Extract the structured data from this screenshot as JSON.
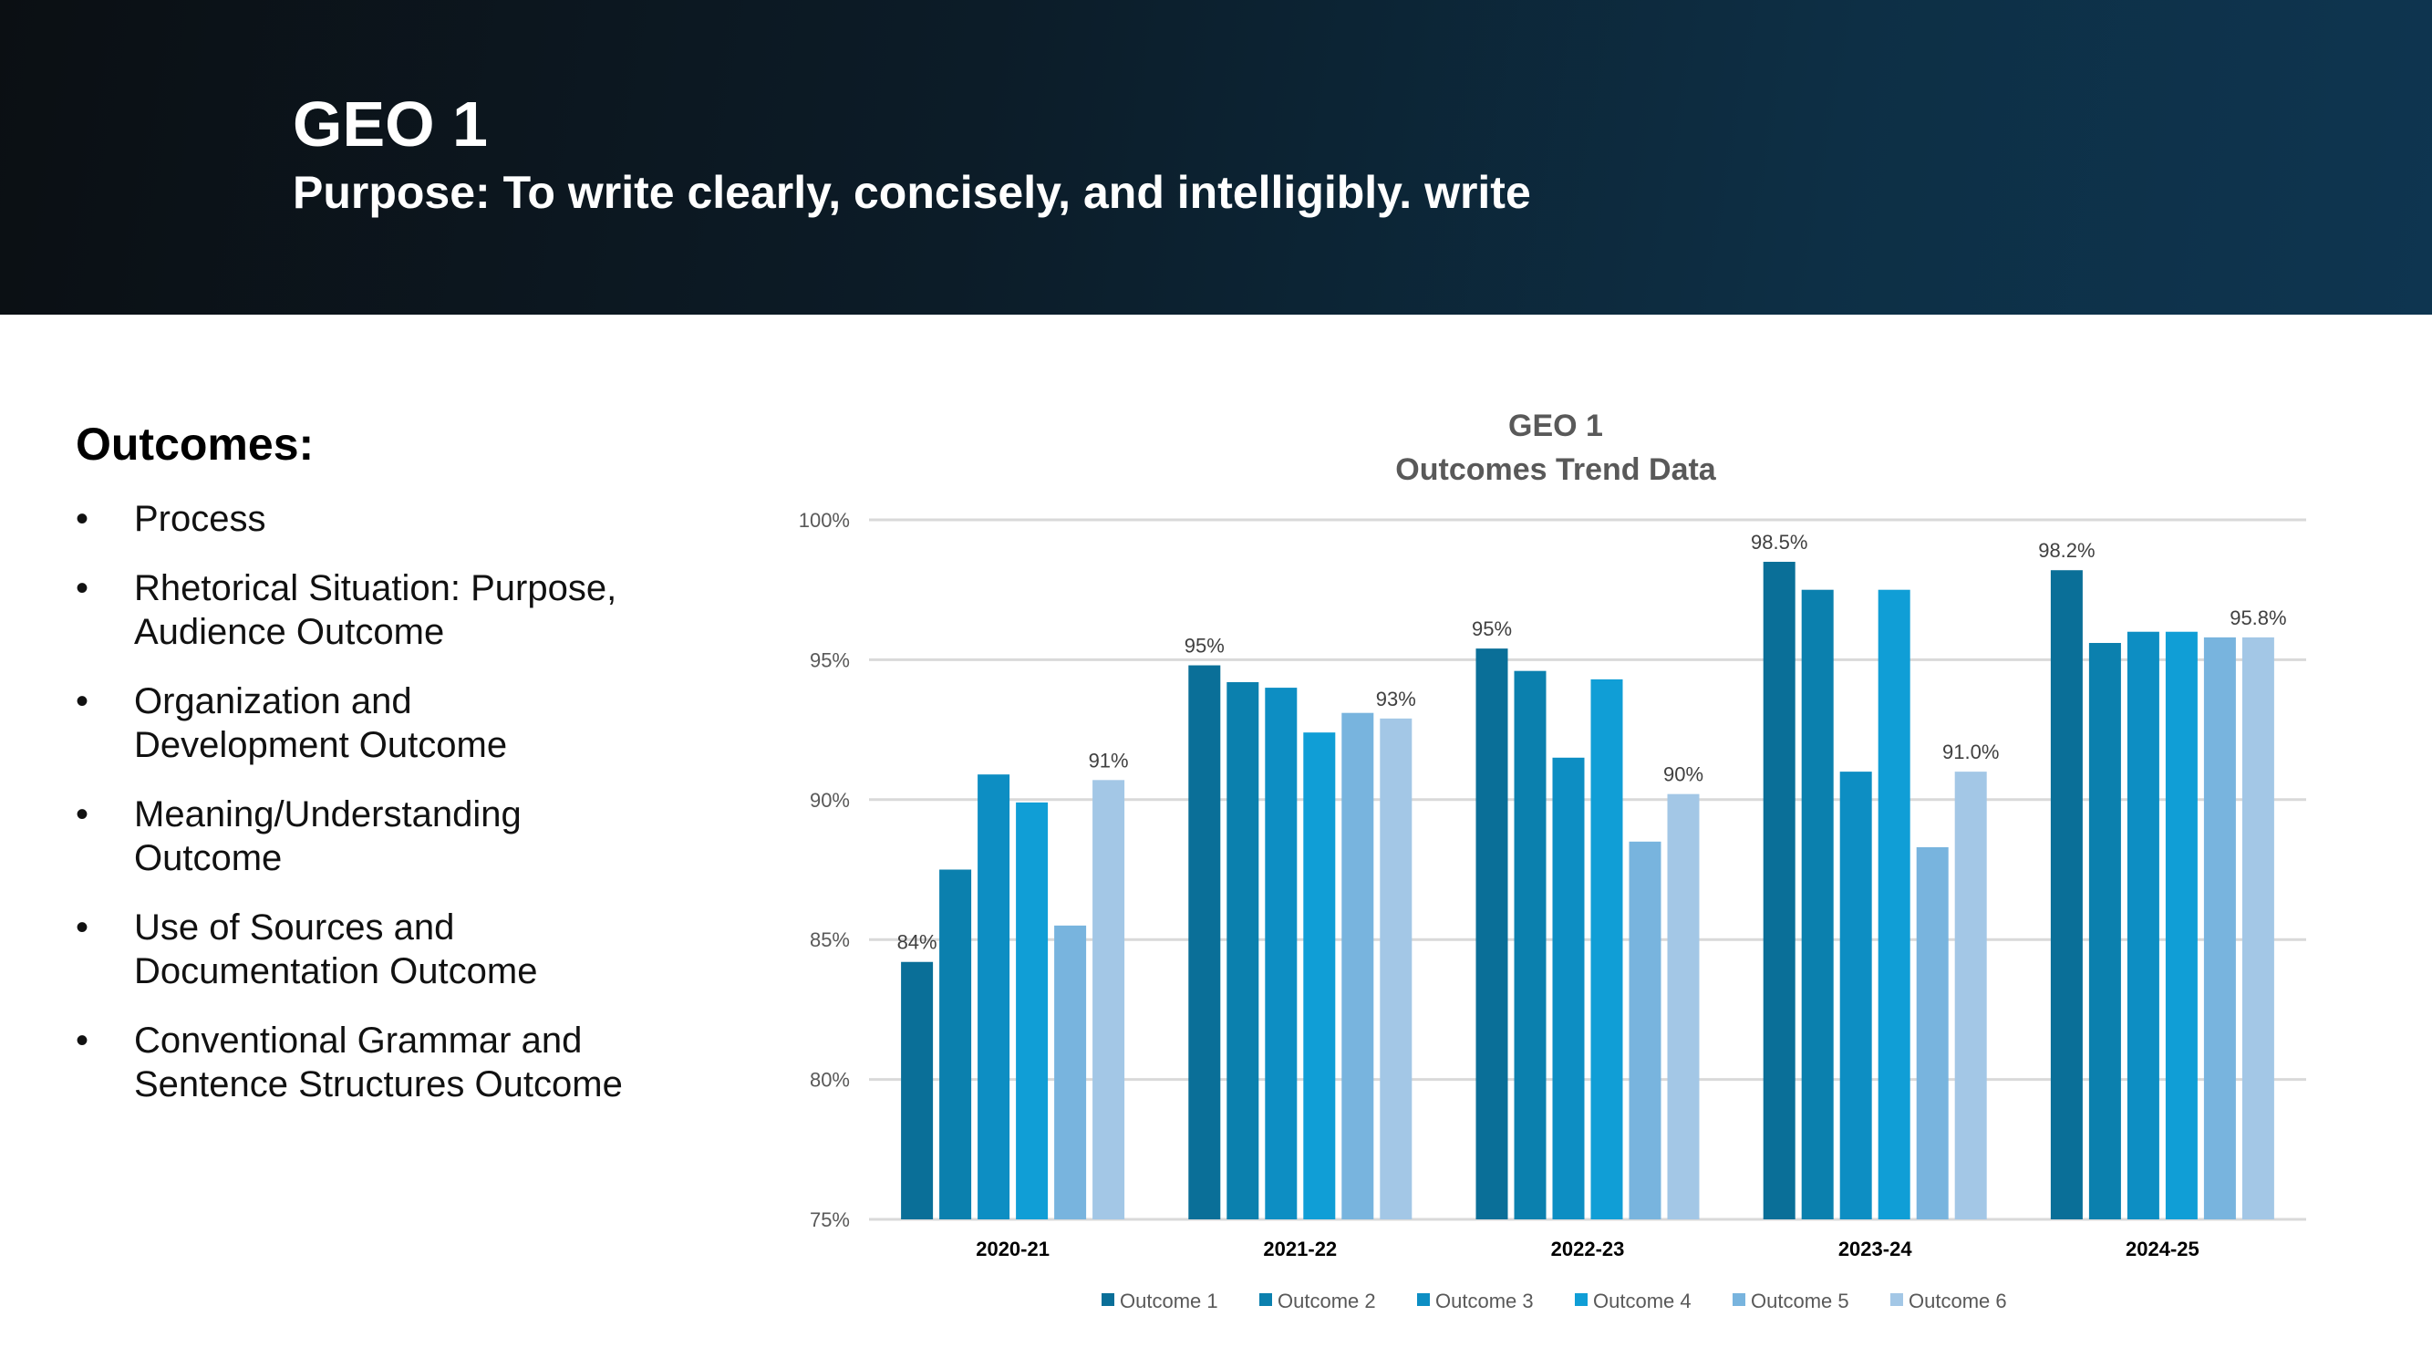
{
  "header": {
    "title": "GEO 1",
    "subtitle": "Purpose: To write clearly, concisely, and intelligibly. write"
  },
  "outcomes": {
    "heading": "Outcomes:",
    "bullet": "•",
    "items": [
      [
        "Process"
      ],
      [
        "Rhetorical Situation: Purpose,",
        "Audience Outcome"
      ],
      [
        "Organization and",
        "Development Outcome"
      ],
      [
        "Meaning/Understanding",
        "Outcome"
      ],
      [
        "Use of Sources and",
        "Documentation Outcome"
      ],
      [
        "Conventional Grammar and",
        "Sentence Structures Outcome"
      ]
    ]
  },
  "chart_data": {
    "type": "bar",
    "title": [
      "GEO 1",
      "Outcomes Trend Data"
    ],
    "categories": [
      "2020-21",
      "2021-22",
      "2022-23",
      "2023-24",
      "2024-25"
    ],
    "ylim": [
      75,
      100
    ],
    "yticks": [
      75,
      80,
      85,
      90,
      95,
      100
    ],
    "ytick_labels": [
      "75%",
      "80%",
      "85%",
      "90%",
      "95%",
      "100%"
    ],
    "grid": true,
    "legend_position": "bottom",
    "series": [
      {
        "name": "Outcome 1",
        "color": "#0a6f98",
        "values": [
          84.2,
          94.8,
          95.4,
          98.5,
          98.2
        ],
        "labels": [
          "84%",
          "95%",
          "95%",
          "98.5%",
          "98.2%"
        ]
      },
      {
        "name": "Outcome 2",
        "color": "#0b80ae",
        "values": [
          87.5,
          94.2,
          94.6,
          97.5,
          95.6
        ],
        "labels": [
          null,
          null,
          null,
          null,
          null
        ]
      },
      {
        "name": "Outcome 3",
        "color": "#0d8ec3",
        "values": [
          90.9,
          94.0,
          91.5,
          91.0,
          96.0
        ],
        "labels": [
          null,
          null,
          null,
          null,
          null
        ]
      },
      {
        "name": "Outcome 4",
        "color": "#109ed6",
        "values": [
          89.9,
          92.4,
          94.3,
          97.5,
          96.0
        ],
        "labels": [
          null,
          null,
          null,
          null,
          null
        ]
      },
      {
        "name": "Outcome 5",
        "color": "#78b4de",
        "values": [
          85.5,
          93.1,
          88.5,
          88.3,
          95.8
        ],
        "labels": [
          null,
          null,
          null,
          null,
          null
        ]
      },
      {
        "name": "Outcome 6",
        "color": "#a3c7e6",
        "values": [
          90.7,
          92.9,
          90.2,
          91.0,
          95.8
        ],
        "labels": [
          "91%",
          "93%",
          "90%",
          "91.0%",
          "95.8%"
        ]
      }
    ]
  }
}
